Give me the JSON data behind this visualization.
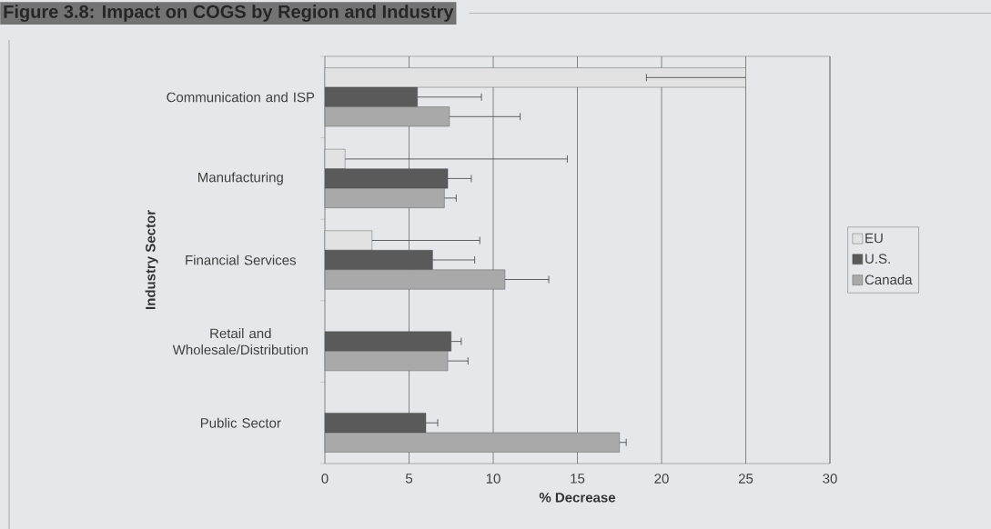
{
  "chart_data": {
    "type": "bar",
    "orientation": "horizontal",
    "title": "Figure 3.8: Impact on COGS by Region and Industry",
    "xlabel": "% Decrease",
    "ylabel": "Industry Sector",
    "categories": [
      "Communication and ISP",
      "Manufacturing",
      "Financial Services",
      "Retail and Wholesale/Distribution",
      "Public Sector"
    ],
    "series": [
      {
        "name": "EU",
        "color": "#e2e2e2",
        "values": [
          25,
          1.2,
          2.8,
          null,
          null
        ],
        "errors": [
          [
            19.1,
            25
          ],
          [
            1.2,
            14.4
          ],
          [
            2.8,
            9.2
          ],
          null,
          null
        ]
      },
      {
        "name": "U.S.",
        "color": "#5a5a5a",
        "values": [
          5.5,
          7.3,
          6.4,
          7.5,
          6.0
        ],
        "errors": [
          [
            5.5,
            9.3
          ],
          [
            7.3,
            8.7
          ],
          [
            6.4,
            8.9
          ],
          [
            7.5,
            8.1
          ],
          [
            6.0,
            6.7
          ]
        ]
      },
      {
        "name": "Canada",
        "color": "#a9a9a9",
        "values": [
          7.4,
          7.1,
          10.7,
          7.3,
          17.5
        ],
        "errors": [
          [
            7.4,
            11.6
          ],
          [
            7.1,
            7.8
          ],
          [
            10.7,
            13.3
          ],
          [
            7.3,
            8.5
          ],
          [
            17.5,
            17.9
          ]
        ]
      }
    ],
    "xlim": [
      0,
      30
    ],
    "xticks": [
      0,
      5,
      10,
      15,
      20,
      25,
      30
    ],
    "grid": "x",
    "legend": "right"
  }
}
